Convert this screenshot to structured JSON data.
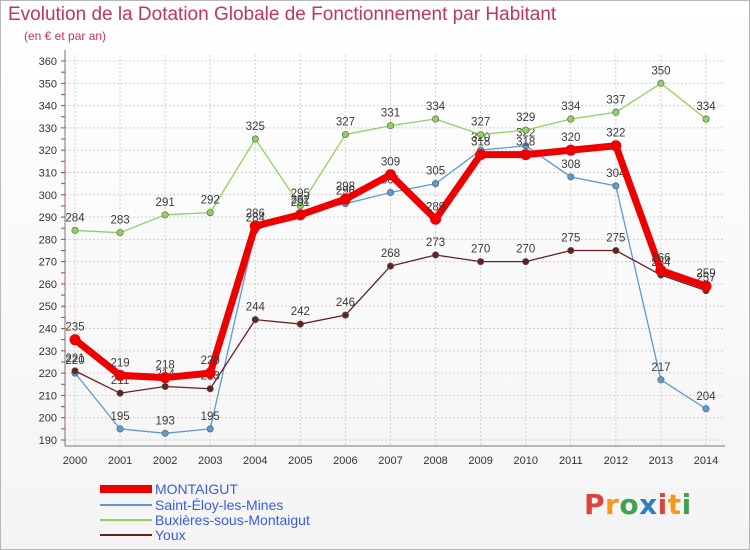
{
  "header": {
    "title": "Evolution de la Dotation Globale de Fonctionnement par Habitant",
    "subtitle": "(en € et par an)"
  },
  "logo": {
    "text": "Proxiti",
    "colors": [
      "#e2403a",
      "#f39a1d",
      "#3fa34d",
      "#2e7fc4"
    ]
  },
  "chart_data": {
    "type": "line",
    "x": [
      "2000",
      "2001",
      "2002",
      "2003",
      "2004",
      "2005",
      "2006",
      "2007",
      "2008",
      "2009",
      "2010",
      "2011",
      "2012",
      "2013",
      "2014"
    ],
    "ylim": [
      190,
      360
    ],
    "yticks": [
      190,
      200,
      210,
      220,
      230,
      240,
      250,
      260,
      270,
      280,
      290,
      300,
      310,
      320,
      330,
      340,
      350,
      360
    ],
    "grid": true,
    "legend_position": "bottom-left",
    "series": [
      {
        "name": "MONTAIGUT",
        "color": "#ee0000",
        "emphasis": true,
        "values": [
          235,
          219,
          218,
          220,
          286,
          291,
          298,
          309,
          289,
          318,
          318,
          320,
          322,
          266,
          259
        ]
      },
      {
        "name": "Saint-Éloy-les-Mines",
        "color": "#5b9bd5",
        "values": [
          220,
          195,
          193,
          195,
          284,
          292,
          296,
          301,
          305,
          320,
          322,
          308,
          304,
          217,
          204
        ]
      },
      {
        "name": "Buxières-sous-Montaigut",
        "color": "#8fd25e",
        "values": [
          284,
          283,
          291,
          292,
          325,
          295,
          327,
          331,
          334,
          327,
          329,
          334,
          337,
          350,
          334
        ]
      },
      {
        "name": "Youx",
        "color": "#6b2020",
        "values": [
          221,
          211,
          214,
          213,
          244,
          242,
          246,
          268,
          273,
          270,
          270,
          275,
          275,
          264,
          257
        ]
      }
    ]
  }
}
